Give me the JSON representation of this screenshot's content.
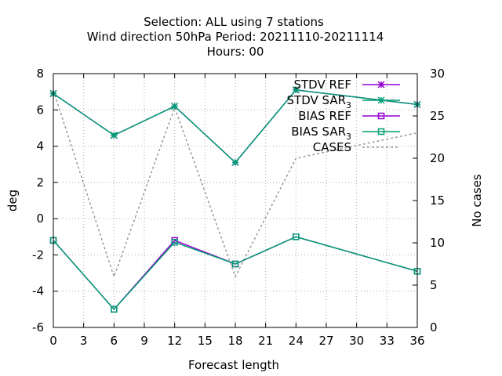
{
  "chart_data": {
    "type": "line",
    "title_lines": [
      "Selection: ALL using     7 stations",
      "Wind direction 50hPa   Period: 20211110-20211114",
      "Hours:  00"
    ],
    "xlabel": "Forecast length",
    "ylabel": "deg",
    "y2label": "No cases",
    "x_ticks": [
      0,
      3,
      6,
      9,
      12,
      15,
      18,
      21,
      24,
      27,
      30,
      33,
      36
    ],
    "y_ticks": [
      -6,
      -4,
      -2,
      0,
      2,
      4,
      6,
      8
    ],
    "y2_ticks": [
      0,
      5,
      10,
      15,
      20,
      25,
      30
    ],
    "xlim": [
      0,
      36
    ],
    "ylim": [
      -6,
      8
    ],
    "y2lim": [
      0,
      30
    ],
    "grid": true,
    "legend_position": "top-right",
    "series": [
      {
        "name": "STDV REF",
        "subscript": "",
        "axis": "y",
        "color": "#9400d3",
        "marker": "star",
        "dash": false,
        "x": [
          0,
          6,
          12,
          18,
          24,
          36
        ],
        "y": [
          6.9,
          4.6,
          6.2,
          3.1,
          7.1,
          6.3
        ]
      },
      {
        "name": "STDV SAR",
        "subscript": "3",
        "axis": "y",
        "color": "#009e73",
        "marker": "star",
        "dash": false,
        "x": [
          0,
          6,
          12,
          18,
          24,
          36
        ],
        "y": [
          6.9,
          4.6,
          6.2,
          3.1,
          7.1,
          6.3
        ]
      },
      {
        "name": "BIAS REF",
        "subscript": "",
        "axis": "y",
        "color": "#9400d3",
        "marker": "square",
        "dash": false,
        "x": [
          0,
          6,
          12,
          18,
          24,
          36
        ],
        "y": [
          -1.2,
          -5.0,
          -1.2,
          -2.5,
          -1.0,
          -2.9
        ]
      },
      {
        "name": "BIAS SAR",
        "subscript": "3",
        "axis": "y",
        "color": "#009e73",
        "marker": "square",
        "dash": false,
        "x": [
          0,
          6,
          12,
          18,
          24,
          36
        ],
        "y": [
          -1.2,
          -5.0,
          -1.3,
          -2.5,
          -1.0,
          -2.9
        ]
      },
      {
        "name": "CASES",
        "subscript": "",
        "axis": "y2",
        "color": "#999999",
        "marker": "none",
        "dash": true,
        "x": [
          0,
          6,
          12,
          18,
          24,
          36
        ],
        "y": [
          28,
          6,
          26,
          6,
          20,
          23
        ]
      }
    ]
  }
}
